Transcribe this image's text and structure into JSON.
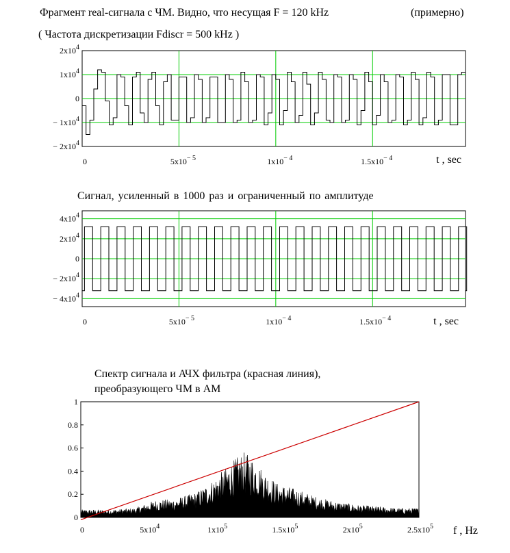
{
  "header": {
    "line1": "Фрагмент real-сигнала с ЧМ.  Видно, что несущая  F = 120 kHz",
    "line1b": "(примерно)",
    "line2": "( Частота дискретизации Fdiscr = 500 kHz )"
  },
  "chart_data": [
    {
      "type": "line",
      "title": "",
      "xlabel": "t ,  sec",
      "ylabel": "",
      "xlim": [
        0,
        0.000198
      ],
      "ylim": [
        -20000,
        20000
      ],
      "x_ticks": [
        {
          "value": 0,
          "mant": "0",
          "exp": ""
        },
        {
          "value": 5e-05,
          "mant": "5x10",
          "exp": "− 5"
        },
        {
          "value": 0.0001,
          "mant": "1x10",
          "exp": "− 4"
        },
        {
          "value": 0.00015,
          "mant": "1.5x10",
          "exp": "− 4"
        }
      ],
      "y_ticks": [
        {
          "value": 20000,
          "mant": "2x10",
          "exp": "4"
        },
        {
          "value": 10000,
          "mant": "1x10",
          "exp": "4"
        },
        {
          "value": 0,
          "mant": "0",
          "exp": ""
        },
        {
          "value": -10000,
          "mant": "− 1x10",
          "exp": "4"
        },
        {
          "value": -20000,
          "mant": "− 2x10",
          "exp": "4"
        }
      ],
      "grid": true,
      "grid_color": "#00cc00",
      "sample_period": 2e-06,
      "values": [
        -3000,
        -15000,
        -9000,
        4000,
        12000,
        11000,
        -1000,
        -11000,
        -8000,
        10000,
        9000,
        -3000,
        -11000,
        9000,
        11000,
        -6000,
        -10000,
        8000,
        11000,
        -3000,
        -11000,
        7000,
        10000,
        -9000,
        -9000,
        9000,
        9000,
        -10000,
        -8000,
        10000,
        8000,
        -10000,
        -8000,
        9000,
        9000,
        -10000,
        -10000,
        10000,
        8000,
        -10000,
        -9000,
        11000,
        7000,
        -10000,
        -9000,
        10000,
        9000,
        -11000,
        -6000,
        10000,
        8000,
        -11000,
        -5000,
        11000,
        7000,
        -10000,
        -7000,
        11000,
        6000,
        -11000,
        -6000,
        11000,
        8000,
        -9000,
        -10000,
        10000,
        9000,
        -10000,
        -9000,
        10000,
        8000,
        -11000,
        -5000,
        11000,
        7000,
        -11000,
        -7000,
        10000,
        7000,
        -10000,
        -9000,
        10000,
        9000,
        -11000,
        -9000,
        11000,
        8000,
        -11000,
        -8000,
        11000,
        9000,
        -11000,
        -9000,
        10000,
        10000,
        -11000,
        -11000,
        10000,
        11000,
        -4000
      ]
    },
    {
      "type": "line",
      "title": "Сигнал, усиленный в 1000 раз и ограниченный по амплитуде",
      "xlabel": "t ,  sec",
      "ylabel": "",
      "xlim": [
        0,
        0.000198
      ],
      "ylim": [
        -48000,
        48000
      ],
      "x_ticks": [
        {
          "value": 0,
          "mant": "0",
          "exp": ""
        },
        {
          "value": 5e-05,
          "mant": "5x10",
          "exp": "− 5"
        },
        {
          "value": 0.0001,
          "mant": "1x10",
          "exp": "− 4"
        },
        {
          "value": 0.00015,
          "mant": "1.5x10",
          "exp": "− 4"
        }
      ],
      "y_ticks": [
        {
          "value": 40000,
          "mant": "4x10",
          "exp": "4"
        },
        {
          "value": 20000,
          "mant": "2x10",
          "exp": "4"
        },
        {
          "value": 0,
          "mant": "0",
          "exp": ""
        },
        {
          "value": -20000,
          "mant": "− 2x10",
          "exp": "4"
        },
        {
          "value": -40000,
          "mant": "− 4x10",
          "exp": "4"
        }
      ],
      "grid": true,
      "grid_color": "#00cc00",
      "clip_level": 32000,
      "period_samples": 4.2,
      "sample_period": 2e-06,
      "n_samples": 100
    },
    {
      "type": "area",
      "title": "Спектр сигнала и АЧХ фильтра (красная линия),",
      "subtitle": "преобразующего ЧМ в АМ",
      "xlabel": "f ,  Hz",
      "ylabel": "",
      "xlim": [
        0,
        250000
      ],
      "ylim": [
        0,
        1
      ],
      "x_ticks": [
        {
          "value": 0,
          "mant": "0",
          "exp": ""
        },
        {
          "value": 50000,
          "mant": "5x10",
          "exp": "4"
        },
        {
          "value": 100000,
          "mant": "1x10",
          "exp": "5"
        },
        {
          "value": 150000,
          "mant": "1.5x10",
          "exp": "5"
        },
        {
          "value": 200000,
          "mant": "2x10",
          "exp": "5"
        },
        {
          "value": 250000,
          "mant": "2.5x10",
          "exp": "5"
        }
      ],
      "y_ticks": [
        {
          "value": 1,
          "label": "1"
        },
        {
          "value": 0.8,
          "label": "0.8"
        },
        {
          "value": 0.6,
          "label": "0.6"
        },
        {
          "value": 0.4,
          "label": "0.4"
        },
        {
          "value": 0.2,
          "label": "0.2"
        },
        {
          "value": 0,
          "label": "0"
        }
      ],
      "grid": false,
      "series": [
        {
          "kind": "spectrum",
          "color": "#000000",
          "x": [
            0,
            20000,
            40000,
            55000,
            70000,
            85000,
            95000,
            105000,
            112000,
            120000,
            128000,
            135000,
            145000,
            160000,
            175000,
            190000,
            205000,
            220000,
            235000,
            250000
          ],
          "envelope": [
            0.05,
            0.05,
            0.06,
            0.11,
            0.12,
            0.16,
            0.22,
            0.3,
            0.36,
            0.42,
            0.38,
            0.3,
            0.22,
            0.18,
            0.13,
            0.1,
            0.08,
            0.07,
            0.06,
            0.06
          ]
        },
        {
          "kind": "filter",
          "color": "#cc0000",
          "x": [
            0,
            250000
          ],
          "values": [
            -0.02,
            1.0
          ]
        }
      ]
    }
  ]
}
